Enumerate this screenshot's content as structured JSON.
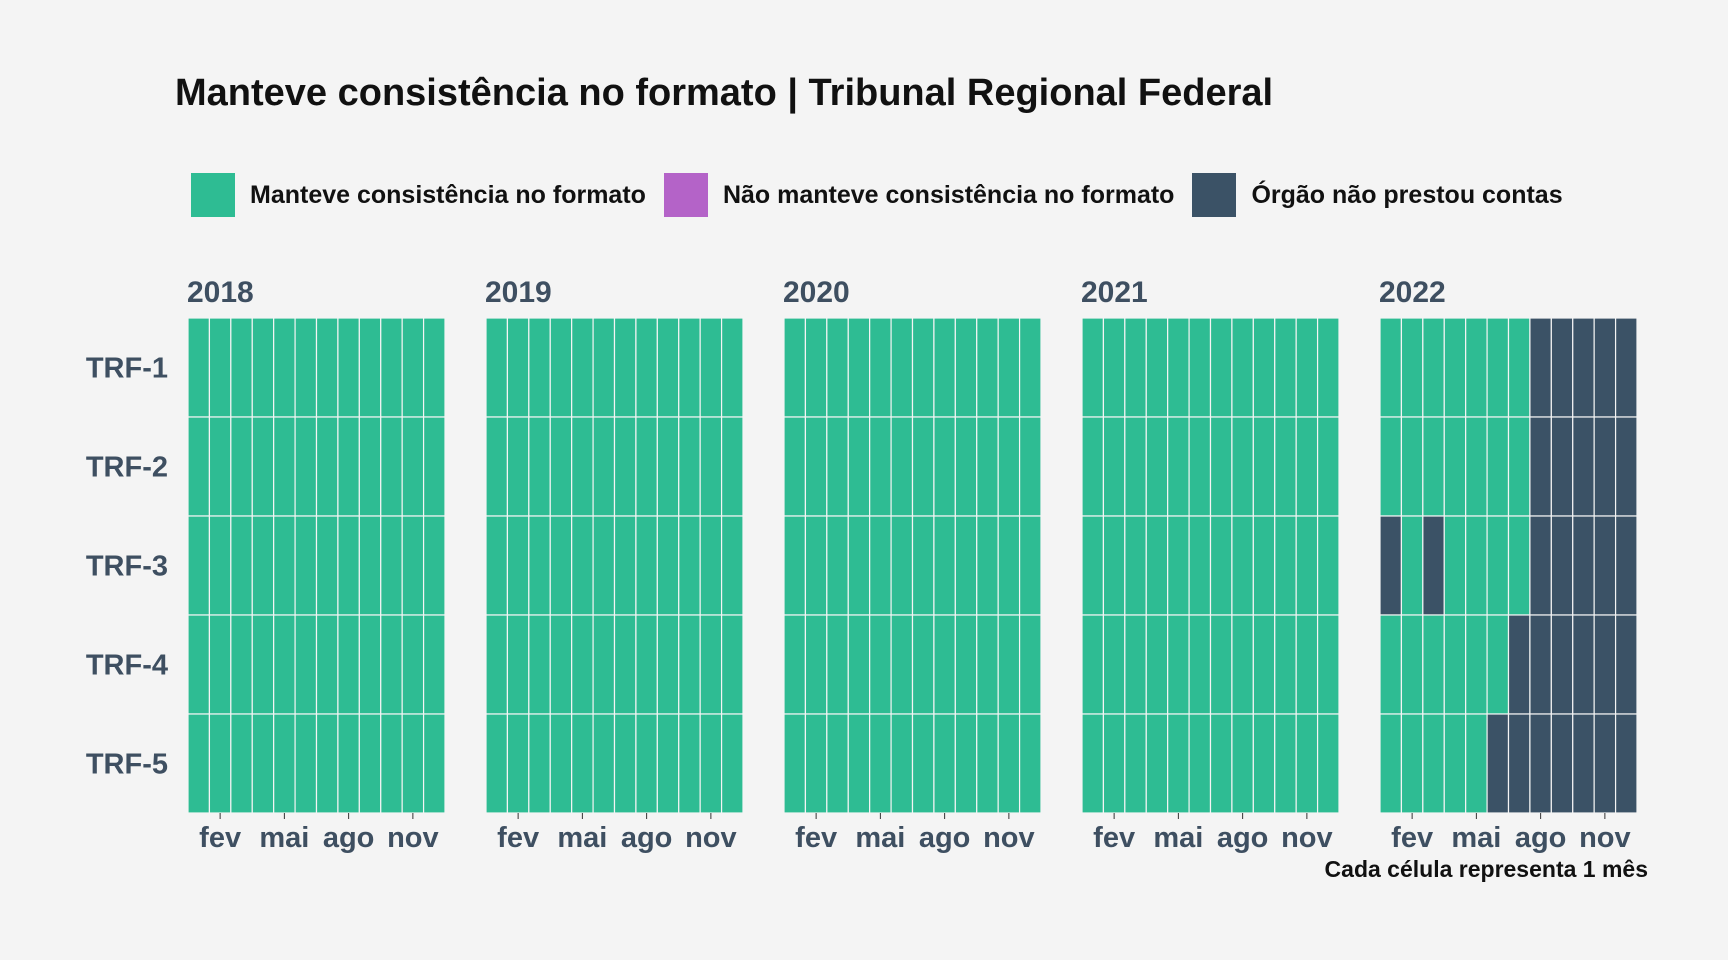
{
  "colors": {
    "manteve": "#2ebc93",
    "nao_manteve": "#b463c8",
    "nao_prestou": "#3b5266",
    "axis_text": "#3e4f61"
  },
  "chart_data": {
    "type": "heatmap",
    "title": "Manteve consistência no formato | Tribunal Regional Federal",
    "caption": "Cada célula representa 1 mês",
    "legend": {
      "placement": "top",
      "items": [
        {
          "key": "M",
          "label": "Manteve consistência no formato",
          "color": "#2ebc93"
        },
        {
          "key": "N",
          "label": "Não manteve consistência no formato",
          "color": "#b463c8"
        },
        {
          "key": "O",
          "label": "Órgão não prestou contas",
          "color": "#3b5266"
        }
      ]
    },
    "rows": [
      "TRF-1",
      "TRF-2",
      "TRF-3",
      "TRF-4",
      "TRF-5"
    ],
    "month_tick_labels": [
      {
        "month": 2,
        "label": "fev"
      },
      {
        "month": 5,
        "label": "mai"
      },
      {
        "month": 8,
        "label": "ago"
      },
      {
        "month": 11,
        "label": "nov"
      }
    ],
    "panels": [
      {
        "year": "2018",
        "cells": [
          "MMMMMMMMMMMM",
          "MMMMMMMMMMMM",
          "MMMMMMMMMMMM",
          "MMMMMMMMMMMM",
          "MMMMMMMMMMMM"
        ]
      },
      {
        "year": "2019",
        "cells": [
          "MMMMMMMMMMMM",
          "MMMMMMMMMMMM",
          "MMMMMMMMMMMM",
          "MMMMMMMMMMMM",
          "MMMMMMMMMMMM"
        ]
      },
      {
        "year": "2020",
        "cells": [
          "MMMMMMMMMMMM",
          "MMMMMMMMMMMM",
          "MMMMMMMMMMMM",
          "MMMMMMMMMMMM",
          "MMMMMMMMMMMM"
        ]
      },
      {
        "year": "2021",
        "cells": [
          "MMMMMMMMMMMM",
          "MMMMMMMMMMMM",
          "MMMMMMMMMMMM",
          "MMMMMMMMMMMM",
          "MMMMMMMMMMMM"
        ]
      },
      {
        "year": "2022",
        "cells": [
          "MMMMMMMOOOOO",
          "MMMMMMMOOOOO",
          "OMOMMMMOOOOO",
          "MMMMMMOOOOOO",
          "MMMMMOOOOOOO"
        ]
      }
    ]
  }
}
